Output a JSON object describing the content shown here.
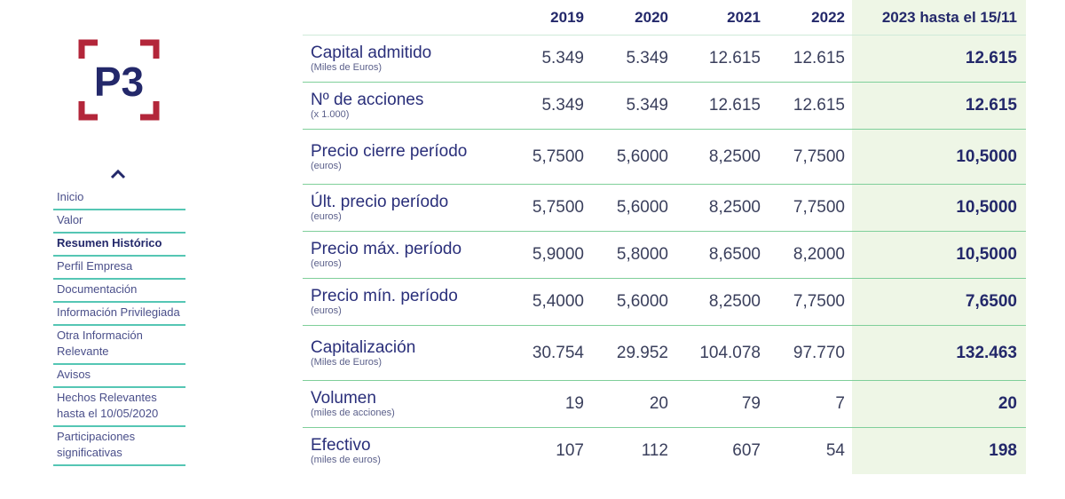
{
  "colors": {
    "accent": "#55c6b4",
    "brand_navy": "#23286a",
    "brand_red": "#b3263a",
    "current_col_bg": "#eef6e6"
  },
  "logo": {
    "text": "P3"
  },
  "sidebar": {
    "collapse_icon": "chevron-up-icon",
    "items": [
      {
        "label": "Inicio"
      },
      {
        "label": "Valor"
      },
      {
        "label": "Resumen Histórico",
        "active": true
      },
      {
        "label": "Perfil Empresa"
      },
      {
        "label": "Documentación"
      },
      {
        "label": "Información Privilegiada"
      },
      {
        "label": "Otra Información Relevante"
      },
      {
        "label": "Avisos"
      },
      {
        "label": "Hechos Relevantes hasta el 10/05/2020"
      },
      {
        "label": "Participaciones significativas"
      }
    ]
  },
  "table": {
    "headers": [
      "2019",
      "2020",
      "2021",
      "2022",
      "2023 hasta el 15/11"
    ],
    "rows": [
      {
        "label": "Capital admitido",
        "unit": "(Miles de Euros)",
        "values": [
          "5.349",
          "5.349",
          "12.615",
          "12.615",
          "12.615"
        ]
      },
      {
        "label": "Nº de acciones",
        "unit": "(x 1.000)",
        "values": [
          "5.349",
          "5.349",
          "12.615",
          "12.615",
          "12.615"
        ]
      },
      {
        "label": "Precio cierre período",
        "unit": "(euros)",
        "values": [
          "5,7500",
          "5,6000",
          "8,2500",
          "7,7500",
          "10,5000"
        ]
      },
      {
        "label": "Últ. precio período",
        "unit": "(euros)",
        "values": [
          "5,7500",
          "5,6000",
          "8,2500",
          "7,7500",
          "10,5000"
        ]
      },
      {
        "label": "Precio máx. período",
        "unit": "(euros)",
        "values": [
          "5,9000",
          "5,8000",
          "8,6500",
          "8,2000",
          "10,5000"
        ]
      },
      {
        "label": "Precio mín. período",
        "unit": "(euros)",
        "values": [
          "5,4000",
          "5,6000",
          "8,2500",
          "7,7500",
          "7,6500"
        ]
      },
      {
        "label": "Capitalización",
        "unit": "(Miles de Euros)",
        "values": [
          "30.754",
          "29.952",
          "104.078",
          "97.770",
          "132.463"
        ]
      },
      {
        "label": "Volumen",
        "unit": "(miles de acciones)",
        "values": [
          "19",
          "20",
          "79",
          "7",
          "20"
        ]
      },
      {
        "label": "Efectivo",
        "unit": "(miles de euros)",
        "values": [
          "107",
          "112",
          "607",
          "54",
          "198"
        ]
      }
    ]
  }
}
